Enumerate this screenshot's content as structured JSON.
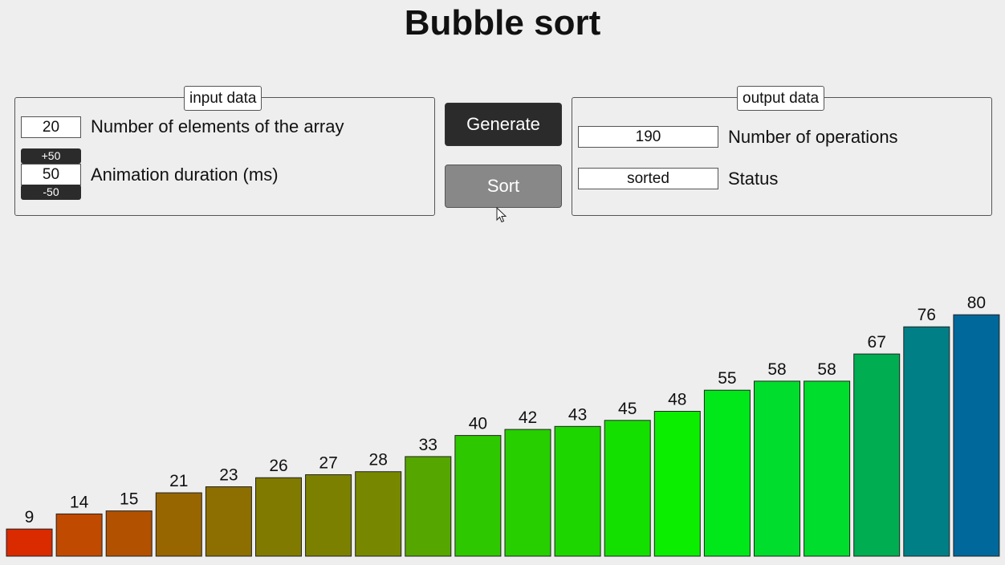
{
  "page": {
    "title": "Bubble sort"
  },
  "input_panel": {
    "legend": "input data",
    "elements_value": "20",
    "elements_label": "Number of elements of the array",
    "duration_plus": "+50",
    "duration_value": "50",
    "duration_minus": "-50",
    "duration_label": "Animation duration (ms)"
  },
  "buttons": {
    "generate": "Generate",
    "sort": "Sort"
  },
  "output_panel": {
    "legend": "output data",
    "operations_value": "190",
    "operations_label": "Number of operations",
    "status_value": "sorted",
    "status_label": "Status"
  },
  "chart_data": {
    "type": "bar",
    "values": [
      9,
      14,
      15,
      21,
      23,
      26,
      27,
      28,
      33,
      40,
      42,
      43,
      45,
      48,
      55,
      58,
      58,
      67,
      76,
      80
    ],
    "colors": [
      "#d92a00",
      "#c04a00",
      "#b25100",
      "#986600",
      "#8c6f00",
      "#807a00",
      "#7c8000",
      "#778800",
      "#56a600",
      "#2ec800",
      "#27cf00",
      "#1dd600",
      "#14e000",
      "#0bee00",
      "#00e81a",
      "#00dd2c",
      "#00dd2c",
      "#00ad50",
      "#007f86",
      "#00689a"
    ]
  }
}
